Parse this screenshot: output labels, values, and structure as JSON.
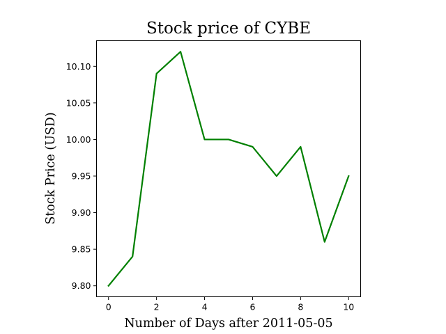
{
  "chart_data": {
    "type": "line",
    "title": "Stock price of CYBE",
    "xlabel": "Number of Days after 2011-05-05",
    "ylabel": "Stock Price (USD)",
    "x": [
      0,
      1,
      2,
      3,
      4,
      5,
      6,
      7,
      8,
      9,
      10
    ],
    "series": [
      {
        "values": [
          9.8,
          9.84,
          10.09,
          10.12,
          10.0,
          10.0,
          9.99,
          9.95,
          9.99,
          9.86,
          9.95
        ],
        "color": "#008000"
      }
    ],
    "xlim": [
      -0.5,
      10.5
    ],
    "ylim": [
      9.785,
      10.135
    ],
    "xticks": [
      0,
      2,
      4,
      6,
      8,
      10
    ],
    "xtick_labels": [
      "0",
      "2",
      "4",
      "6",
      "8",
      "10"
    ],
    "yticks": [
      9.8,
      9.85,
      9.9,
      9.95,
      10.0,
      10.05,
      10.1
    ],
    "ytick_labels": [
      "9.80",
      "9.85",
      "9.90",
      "9.95",
      "10.00",
      "10.05",
      "10.10"
    ],
    "grid": false,
    "legend": false
  }
}
